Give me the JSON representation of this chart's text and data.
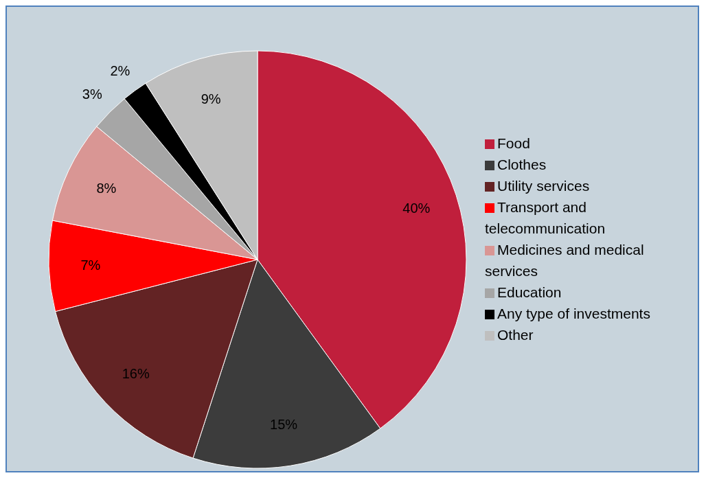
{
  "chart_data": {
    "type": "pie",
    "categories": [
      "Food",
      "Clothes",
      "Utility services",
      "Transport and telecommunication",
      "Medicines and medical services",
      "Education",
      "Any type of investments",
      "Other"
    ],
    "values": [
      40,
      15,
      16,
      7,
      8,
      3,
      2,
      9
    ],
    "colors": [
      "#c01f3c",
      "#3c3c3c",
      "#632324",
      "#ff0000",
      "#d99694",
      "#a6a6a6",
      "#000000",
      "#bfbfbf"
    ],
    "value_labels": [
      "40%",
      "15%",
      "16%",
      "7%",
      "8%",
      "3%",
      "2%",
      "9%"
    ],
    "legend": "right"
  }
}
